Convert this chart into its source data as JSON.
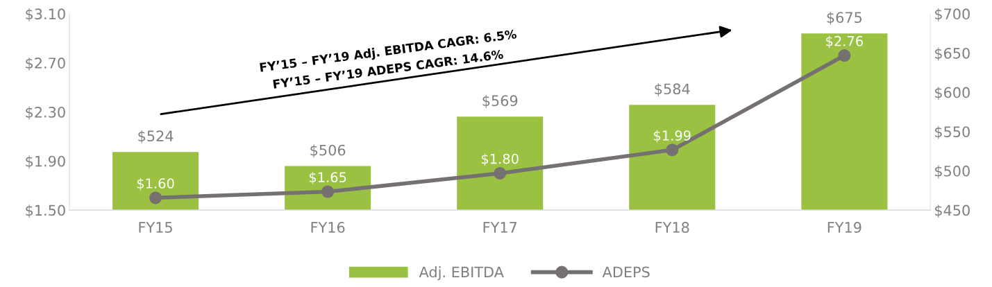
{
  "chart_data": {
    "type": "bar",
    "categories": [
      "FY15",
      "FY16",
      "FY17",
      "FY18",
      "FY19"
    ],
    "series": [
      {
        "name": "Adj. EBITDA",
        "axis": "y2",
        "color": "#9bc143",
        "values": [
          524,
          506,
          569,
          584,
          675
        ],
        "value_labels": [
          "$524",
          "$506",
          "$569",
          "$584",
          "$675"
        ]
      },
      {
        "name": "ADEPS",
        "type": "line",
        "axis": "y",
        "color": "#767171",
        "marker": "circle",
        "values": [
          1.6,
          1.65,
          1.8,
          1.99,
          2.76
        ],
        "value_labels": [
          "$1.60",
          "$1.65",
          "$1.80",
          "$1.99",
          "$2.76"
        ]
      }
    ],
    "ylim": [
      1.5,
      3.1
    ],
    "yticks": [
      {
        "value": 1.5,
        "label": "$1.50"
      },
      {
        "value": 1.9,
        "label": "$1.90"
      },
      {
        "value": 2.3,
        "label": "$2.30"
      },
      {
        "value": 2.7,
        "label": "$2.70"
      },
      {
        "value": 3.1,
        "label": "$3.10"
      }
    ],
    "y2lim": [
      450,
      700
    ],
    "y2ticks": [
      {
        "value": 450,
        "label": "$450"
      },
      {
        "value": 500,
        "label": "$500"
      },
      {
        "value": 550,
        "label": "$550"
      },
      {
        "value": 600,
        "label": "$600"
      },
      {
        "value": 650,
        "label": "$650"
      },
      {
        "value": 700,
        "label": "$700"
      }
    ],
    "annotations": [
      "FY’15 – FY’19 Adj. EBITDA CAGR: 6.5%",
      "FY’15 – FY’19 ADEPS CAGR: 14.6%"
    ],
    "grid": false,
    "legend": "bottom"
  }
}
